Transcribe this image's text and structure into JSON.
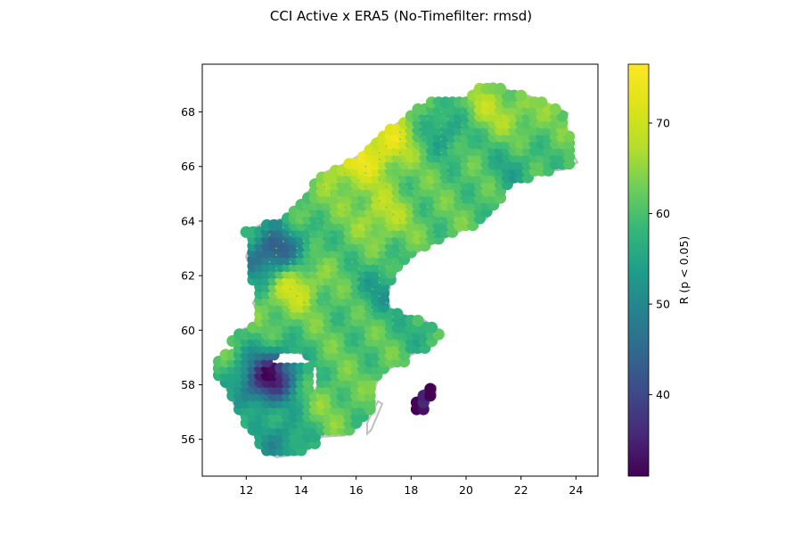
{
  "chart_data": {
    "type": "scatter",
    "title": "CCI Active x ERA5 (No-Timefilter: rmsd)",
    "xlim": [
      10.4,
      24.8
    ],
    "ylim": [
      54.65,
      69.75
    ],
    "xticks": [
      "12",
      "14",
      "16",
      "18",
      "20",
      "22",
      "24"
    ],
    "xtick_values": [
      12,
      14,
      16,
      18,
      20,
      22,
      24
    ],
    "yticks": [
      "56",
      "58",
      "60",
      "62",
      "64",
      "66",
      "68"
    ],
    "ytick_values": [
      56,
      58,
      60,
      62,
      64,
      66,
      68
    ],
    "grid": false,
    "colormap": "viridis",
    "colorbar": {
      "label": "R (p < 0.05)",
      "range": [
        31,
        76.5
      ],
      "ticks": [
        "40",
        "50",
        "60",
        "70"
      ],
      "tick_values": [
        40,
        50,
        60,
        70
      ]
    },
    "colors": {
      "coastline": "#c0c0c0",
      "missing": "#7fbf6a",
      "axes": "#000000"
    }
  }
}
